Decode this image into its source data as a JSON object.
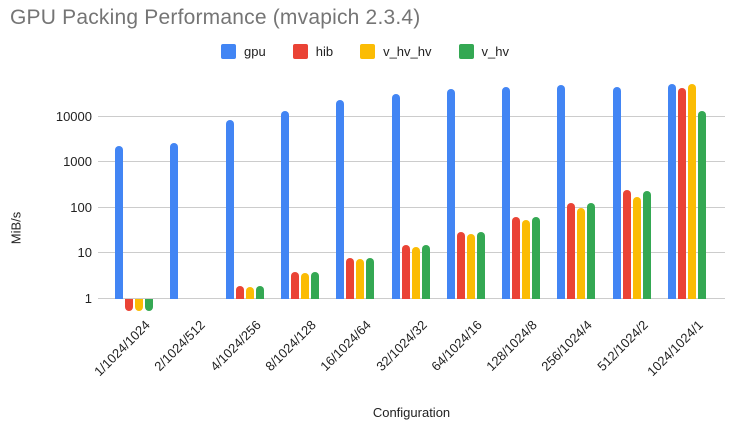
{
  "chart_data": {
    "type": "bar",
    "scale": "log",
    "title": "GPU Packing Performance (mvapich 2.3.4)",
    "xlabel": "Configuration",
    "ylabel": "MiB/s",
    "yticks": [
      1,
      10,
      100,
      1000,
      10000
    ],
    "ylim": [
      1,
      63000
    ],
    "baseline": 1,
    "grid": true,
    "legend_position": "top",
    "categories": [
      "1/1024/1024",
      "2/1024/512",
      "4/1024/256",
      "8/1024/128",
      "16/1024/64",
      "32/1024/32",
      "64/1024/16",
      "128/1024/8",
      "256/1024/4",
      "512/1024/2",
      "1024/1024/1"
    ],
    "series": [
      {
        "name": "gpu",
        "color": "#4285F4",
        "values": [
          2250,
          2700,
          8500,
          13500,
          23000,
          32000,
          41000,
          45000,
          48500,
          45000,
          51000
        ]
      },
      {
        "name": "hib",
        "color": "#EA4335",
        "values": [
          0.55,
          null,
          1.9,
          3.9,
          7.8,
          15,
          30,
          62,
          130,
          250,
          43000
        ]
      },
      {
        "name": "v_hv_hv",
        "color": "#FBBC04",
        "values": [
          0.55,
          null,
          1.8,
          3.7,
          7.4,
          14,
          27,
          54,
          100,
          170,
          52000
        ]
      },
      {
        "name": "v_hv",
        "color": "#34A853",
        "values": [
          0.55,
          null,
          1.9,
          3.9,
          8.0,
          15.5,
          30,
          62,
          125,
          235,
          13000
        ]
      }
    ]
  }
}
